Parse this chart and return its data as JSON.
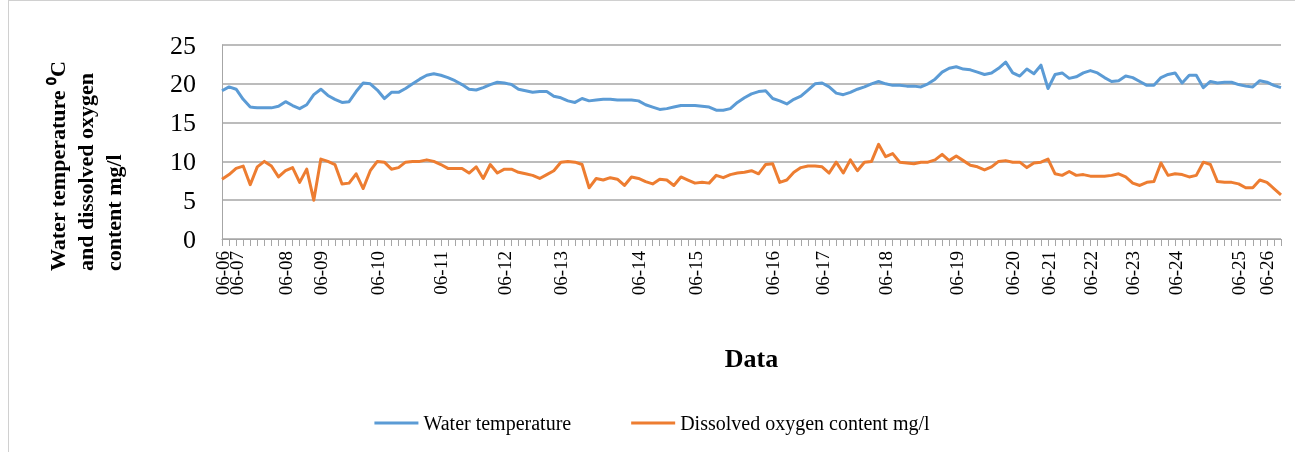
{
  "chart_data": {
    "type": "line",
    "xlabel": "Data",
    "ylabel": "Water temperature ⁰C and dissolved oxygen content mg/l",
    "categories": [
      "06-06",
      null,
      "06-07",
      null,
      null,
      null,
      null,
      null,
      null,
      "06-08",
      null,
      null,
      null,
      null,
      "06-09",
      null,
      null,
      null,
      null,
      null,
      null,
      null,
      "06-10",
      null,
      null,
      null,
      null,
      null,
      null,
      null,
      null,
      "06-11",
      null,
      null,
      null,
      null,
      null,
      null,
      null,
      null,
      "06-12",
      null,
      null,
      null,
      null,
      null,
      null,
      null,
      "06-13",
      null,
      null,
      null,
      null,
      null,
      null,
      null,
      null,
      null,
      null,
      "06-14",
      null,
      null,
      null,
      null,
      null,
      null,
      null,
      "06-15",
      null,
      null,
      null,
      null,
      null,
      null,
      null,
      null,
      null,
      null,
      "06-16",
      null,
      null,
      null,
      null,
      null,
      null,
      "06-17",
      null,
      null,
      null,
      null,
      null,
      null,
      null,
      null,
      "06-18",
      null,
      null,
      null,
      null,
      null,
      null,
      null,
      null,
      null,
      "06-19",
      null,
      null,
      null,
      null,
      null,
      null,
      null,
      "06-20",
      null,
      null,
      null,
      null,
      "06-21",
      null,
      null,
      null,
      null,
      null,
      "06-22",
      null,
      null,
      null,
      null,
      null,
      "06-23",
      null,
      null,
      null,
      null,
      null,
      "06-24",
      null,
      null,
      null,
      null,
      null,
      null,
      null,
      null,
      "06-25",
      null,
      null,
      null,
      "06-26",
      null,
      null
    ],
    "series": [
      {
        "name": "Water temperature",
        "color": "#5b9bd5",
        "values": [
          19.1,
          19.6,
          19.3,
          18.0,
          17.0,
          16.9,
          16.9,
          16.9,
          17.1,
          17.7,
          17.2,
          16.8,
          17.3,
          18.6,
          19.3,
          18.5,
          18.0,
          17.6,
          17.7,
          19.0,
          20.1,
          20.0,
          19.2,
          18.1,
          18.9,
          18.9,
          19.4,
          20.0,
          20.6,
          21.1,
          21.3,
          21.1,
          20.8,
          20.4,
          19.9,
          19.3,
          19.2,
          19.5,
          19.9,
          20.2,
          20.1,
          19.9,
          19.3,
          19.1,
          18.9,
          19.0,
          19.0,
          18.4,
          18.2,
          17.8,
          17.6,
          18.1,
          17.8,
          17.9,
          18.0,
          18.0,
          17.9,
          17.9,
          17.9,
          17.8,
          17.3,
          17.0,
          16.7,
          16.8,
          17.0,
          17.2,
          17.2,
          17.2,
          17.1,
          17.0,
          16.6,
          16.6,
          16.8,
          17.6,
          18.2,
          18.7,
          19.0,
          19.1,
          18.1,
          17.8,
          17.4,
          18.0,
          18.4,
          19.2,
          20.0,
          20.1,
          19.6,
          18.8,
          18.6,
          18.9,
          19.3,
          19.6,
          20.0,
          20.3,
          20.0,
          19.8,
          19.8,
          19.7,
          19.7,
          19.6,
          20.0,
          20.6,
          21.5,
          22.0,
          22.2,
          21.9,
          21.8,
          21.5,
          21.2,
          21.4,
          22.0,
          22.8,
          21.4,
          21.0,
          21.9,
          21.3,
          22.4,
          19.4,
          21.2,
          21.4,
          20.7,
          20.9,
          21.4,
          21.7,
          21.4,
          20.8,
          20.3,
          20.4,
          21.0,
          20.8,
          20.3,
          19.8,
          19.8,
          20.8,
          21.2,
          21.4,
          20.1,
          21.1,
          21.1,
          19.5,
          20.3,
          20.1,
          20.2,
          20.2,
          19.9,
          19.7,
          19.6,
          20.4,
          20.2,
          19.8,
          19.5
        ]
      },
      {
        "name": "Dissolved oxygen content mg/l",
        "color": "#ed7d31",
        "values": [
          7.7,
          8.3,
          9.1,
          9.4,
          7.0,
          9.3,
          10.0,
          9.4,
          8.0,
          8.8,
          9.2,
          7.3,
          9.0,
          5.0,
          10.3,
          10.0,
          9.6,
          7.1,
          7.2,
          8.4,
          6.5,
          8.8,
          10.0,
          9.9,
          9.0,
          9.2,
          9.9,
          10.0,
          10.0,
          10.2,
          10.0,
          9.6,
          9.1,
          9.1,
          9.1,
          8.5,
          9.3,
          7.8,
          9.6,
          8.5,
          9.0,
          9.0,
          8.6,
          8.4,
          8.2,
          7.8,
          8.3,
          8.8,
          9.9,
          10.0,
          9.9,
          9.6,
          6.6,
          7.8,
          7.6,
          7.9,
          7.7,
          6.9,
          8.0,
          7.8,
          7.4,
          7.1,
          7.7,
          7.6,
          6.9,
          8.0,
          7.6,
          7.2,
          7.3,
          7.2,
          8.2,
          7.9,
          8.3,
          8.5,
          8.6,
          8.8,
          8.4,
          9.6,
          9.7,
          7.3,
          7.6,
          8.6,
          9.2,
          9.4,
          9.4,
          9.3,
          8.5,
          9.9,
          8.5,
          10.2,
          8.8,
          9.9,
          10.0,
          12.2,
          10.6,
          11.0,
          9.9,
          9.8,
          9.7,
          9.9,
          9.9,
          10.2,
          10.9,
          10.1,
          10.7,
          10.1,
          9.5,
          9.3,
          8.9,
          9.3,
          10.0,
          10.1,
          9.9,
          9.9,
          9.2,
          9.8,
          9.9,
          10.3,
          8.4,
          8.2,
          8.7,
          8.2,
          8.3,
          8.1,
          8.1,
          8.1,
          8.2,
          8.4,
          8.0,
          7.2,
          6.9,
          7.3,
          7.4,
          9.8,
          8.2,
          8.4,
          8.3,
          8.0,
          8.2,
          9.9,
          9.6,
          7.4,
          7.3,
          7.3,
          7.1,
          6.6,
          6.6,
          7.6,
          7.3,
          6.5,
          5.7
        ]
      }
    ],
    "ylim": [
      0,
      25
    ],
    "yticks": [
      0,
      5,
      10,
      15,
      20,
      25
    ],
    "grid": "y",
    "legend": "bottom",
    "marker": "none"
  }
}
